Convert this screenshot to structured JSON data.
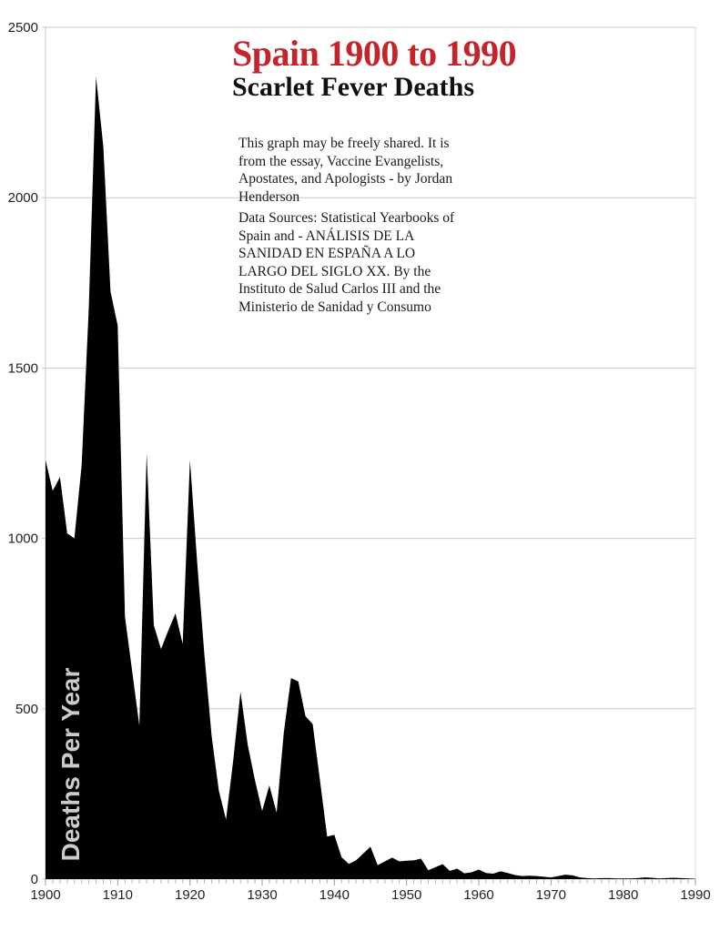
{
  "header": {
    "title": "Spain 1900 to 1990",
    "subtitle": "Scarlet Fever Deaths"
  },
  "notes": {
    "share": {
      "lines": [
        "This graph may be freely shared. It is",
        "from the essay, Vaccine Evangelists,",
        "Apostates, and Apologists - by Jordan",
        "Henderson"
      ]
    },
    "sources": {
      "lines": [
        "Data Sources: Statistical Yearbooks of",
        "Spain and - ANÁLISIS DE LA",
        "SANIDAD EN ESPAÑA A LO",
        "LARGO DEL SIGLO XX. By the",
        "Instituto de Salud Carlos III and the",
        "Ministerio de Sanidad y Consumo"
      ]
    }
  },
  "colors": {
    "title": "#c5242b",
    "subtitle": "#111111",
    "area_fill": "#000000",
    "gridline": "#c9c9c9",
    "axis_line": "#c9c9c9",
    "right_border": "#dcdcdc",
    "tick_minor": "#b8b8b8",
    "tick_major": "#999999",
    "tick_label": "#222222",
    "axis_title": "#cbcbcb"
  },
  "chart_data": {
    "type": "area",
    "title": "Spain 1900 to 1990",
    "subtitle": "Scarlet Fever Deaths",
    "ylabel": "Deaths Per Year",
    "xlabel": "",
    "x_start": 1900,
    "x_end": 1990,
    "ylim": [
      0,
      2500
    ],
    "y_ticks": [
      0,
      500,
      1000,
      1500,
      2000,
      2500
    ],
    "x_ticks": [
      1900,
      1910,
      1920,
      1930,
      1940,
      1950,
      1960,
      1970,
      1980,
      1990
    ],
    "grid": "horizontal",
    "legend": "none",
    "series_name": "Scarlet Fever Deaths",
    "fill_color": "#000000",
    "years": [
      1900,
      1901,
      1902,
      1903,
      1904,
      1905,
      1906,
      1907,
      1908,
      1909,
      1910,
      1911,
      1912,
      1913,
      1914,
      1915,
      1916,
      1917,
      1918,
      1919,
      1920,
      1921,
      1922,
      1923,
      1924,
      1925,
      1926,
      1927,
      1928,
      1929,
      1930,
      1931,
      1932,
      1933,
      1934,
      1935,
      1936,
      1937,
      1938,
      1939,
      1940,
      1941,
      1942,
      1943,
      1944,
      1945,
      1946,
      1947,
      1948,
      1949,
      1950,
      1951,
      1952,
      1953,
      1954,
      1955,
      1956,
      1957,
      1958,
      1959,
      1960,
      1961,
      1962,
      1963,
      1964,
      1965,
      1966,
      1967,
      1968,
      1969,
      1970,
      1971,
      1972,
      1973,
      1974,
      1975,
      1976,
      1977,
      1978,
      1979,
      1980,
      1981,
      1982,
      1983,
      1984,
      1985,
      1986,
      1987,
      1988,
      1989,
      1990
    ],
    "values": [
      1230,
      1140,
      1180,
      1015,
      1000,
      1215,
      1680,
      2355,
      2150,
      1725,
      1625,
      770,
      610,
      450,
      1250,
      745,
      675,
      730,
      780,
      690,
      1230,
      930,
      660,
      420,
      260,
      175,
      350,
      550,
      395,
      290,
      200,
      275,
      195,
      430,
      590,
      580,
      478,
      455,
      290,
      125,
      130,
      64,
      45,
      55,
      75,
      95,
      41,
      52,
      63,
      52,
      54,
      55,
      60,
      26,
      35,
      44,
      24,
      31,
      17,
      20,
      28,
      18,
      16,
      23,
      18,
      12,
      9,
      10,
      9,
      7,
      5,
      9,
      13,
      11,
      5,
      3,
      2,
      3,
      3,
      2,
      2,
      2,
      3,
      5,
      4,
      2,
      3,
      4,
      3,
      2,
      1
    ]
  }
}
